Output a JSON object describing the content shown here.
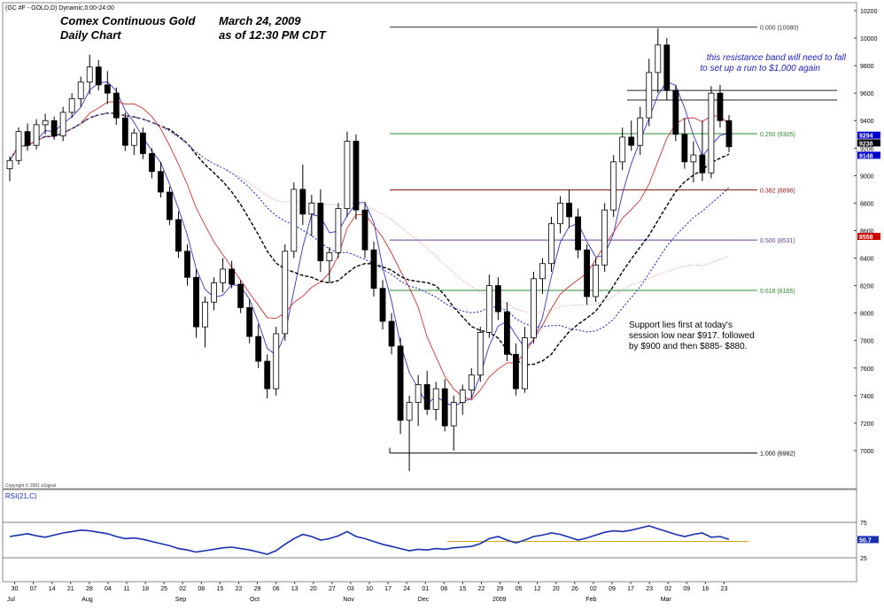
{
  "header": {
    "symbol": "(GC #F - GOLD,D) Dynamic,0:00-24:00",
    "title_line1": "Comex Continuous Gold",
    "title_line2": "Daily Chart",
    "date_line1": "March 24, 2009",
    "date_line2": "as of  12:30 PM CDT"
  },
  "copyright": "Copyright © 2001 eSignal",
  "colors": {
    "up_candle": "#ffffff",
    "down_candle": "#000000",
    "ma_fast": "#3333cc",
    "ma_red": "#cc3333",
    "ma_black": "#000000",
    "ma_blue_dotted": "#2233bb",
    "ma_pink_dotted": "#dd8888",
    "fib_green": "#2e8b2e",
    "fib_red": "#8b1a1a",
    "fib_purple": "#6a3d8f",
    "rsi_line": "#1a2fb0",
    "annotation_blue": "#2222bb"
  },
  "chart_data": [
    {
      "type": "candlestick",
      "title": "Comex Continuous Gold Daily Chart",
      "ylim": [
        680,
        1020
      ],
      "y_ticks": [
        700,
        720,
        740,
        760,
        780,
        800,
        820,
        840,
        860,
        880,
        900,
        920,
        940,
        960,
        980,
        1000,
        1020
      ],
      "y_tick_labels": [
        "7000",
        "7200",
        "7400",
        "7600",
        "7800",
        "8000",
        "8200",
        "8400",
        "8600",
        "8800",
        "9000",
        "9200",
        "9400",
        "9600",
        "9800",
        "10000",
        "10200"
      ],
      "price_tags": [
        {
          "label": "9294",
          "value": 929.4,
          "color": "#0000cc"
        },
        {
          "label": "9238",
          "value": 923.8,
          "color": "#000000"
        },
        {
          "label": "9148",
          "value": 914.8,
          "color": "#0000cc"
        },
        {
          "label": "8558",
          "value": 855.8,
          "color": "#cc0000"
        }
      ],
      "x_day_labels": [
        "30",
        "07",
        "14",
        "21",
        "28",
        "04",
        "11",
        "18",
        "25",
        "02",
        "08",
        "15",
        "22",
        "29",
        "06",
        "13",
        "20",
        "27",
        "03",
        "10",
        "17",
        "24",
        "01",
        "08",
        "15",
        "22",
        "29",
        "05",
        "12",
        "20",
        "26",
        "02",
        "09",
        "17",
        "23",
        "02",
        "09",
        "16",
        "23"
      ],
      "x_month_labels": [
        "Jul",
        "Aug",
        "Sep",
        "Oct",
        "Nov",
        "Dec",
        "2009",
        "Feb",
        "Mar"
      ],
      "candles": [
        {
          "o": 905,
          "h": 914,
          "l": 896,
          "c": 911
        },
        {
          "o": 911,
          "h": 935,
          "l": 908,
          "c": 932
        },
        {
          "o": 932,
          "h": 938,
          "l": 918,
          "c": 922
        },
        {
          "o": 922,
          "h": 941,
          "l": 919,
          "c": 937
        },
        {
          "o": 937,
          "h": 945,
          "l": 930,
          "c": 940
        },
        {
          "o": 940,
          "h": 943,
          "l": 926,
          "c": 929
        },
        {
          "o": 929,
          "h": 950,
          "l": 925,
          "c": 946
        },
        {
          "o": 946,
          "h": 960,
          "l": 942,
          "c": 956
        },
        {
          "o": 956,
          "h": 972,
          "l": 950,
          "c": 968
        },
        {
          "o": 968,
          "h": 988,
          "l": 959,
          "c": 979
        },
        {
          "o": 979,
          "h": 984,
          "l": 962,
          "c": 966
        },
        {
          "o": 966,
          "h": 976,
          "l": 952,
          "c": 960
        },
        {
          "o": 960,
          "h": 964,
          "l": 937,
          "c": 942
        },
        {
          "o": 942,
          "h": 946,
          "l": 918,
          "c": 922
        },
        {
          "o": 922,
          "h": 934,
          "l": 915,
          "c": 931
        },
        {
          "o": 931,
          "h": 935,
          "l": 912,
          "c": 916
        },
        {
          "o": 916,
          "h": 920,
          "l": 898,
          "c": 903
        },
        {
          "o": 903,
          "h": 910,
          "l": 884,
          "c": 888
        },
        {
          "o": 888,
          "h": 892,
          "l": 864,
          "c": 868
        },
        {
          "o": 868,
          "h": 874,
          "l": 840,
          "c": 845
        },
        {
          "o": 845,
          "h": 850,
          "l": 820,
          "c": 826
        },
        {
          "o": 826,
          "h": 832,
          "l": 782,
          "c": 790
        },
        {
          "o": 790,
          "h": 812,
          "l": 775,
          "c": 808
        },
        {
          "o": 808,
          "h": 826,
          "l": 802,
          "c": 822
        },
        {
          "o": 822,
          "h": 840,
          "l": 815,
          "c": 832
        },
        {
          "o": 832,
          "h": 838,
          "l": 818,
          "c": 821
        },
        {
          "o": 821,
          "h": 824,
          "l": 800,
          "c": 804
        },
        {
          "o": 804,
          "h": 810,
          "l": 778,
          "c": 783
        },
        {
          "o": 783,
          "h": 792,
          "l": 760,
          "c": 765
        },
        {
          "o": 765,
          "h": 770,
          "l": 738,
          "c": 745
        },
        {
          "o": 745,
          "h": 790,
          "l": 740,
          "c": 785
        },
        {
          "o": 785,
          "h": 850,
          "l": 780,
          "c": 845
        },
        {
          "o": 845,
          "h": 895,
          "l": 840,
          "c": 890
        },
        {
          "o": 890,
          "h": 908,
          "l": 864,
          "c": 872
        },
        {
          "o": 872,
          "h": 886,
          "l": 856,
          "c": 880
        },
        {
          "o": 880,
          "h": 890,
          "l": 830,
          "c": 838
        },
        {
          "o": 838,
          "h": 848,
          "l": 822,
          "c": 844
        },
        {
          "o": 844,
          "h": 880,
          "l": 840,
          "c": 876
        },
        {
          "o": 876,
          "h": 932,
          "l": 870,
          "c": 925
        },
        {
          "o": 925,
          "h": 930,
          "l": 868,
          "c": 875
        },
        {
          "o": 875,
          "h": 880,
          "l": 840,
          "c": 846
        },
        {
          "o": 846,
          "h": 852,
          "l": 812,
          "c": 818
        },
        {
          "o": 818,
          "h": 824,
          "l": 788,
          "c": 794
        },
        {
          "o": 794,
          "h": 800,
          "l": 770,
          "c": 776
        },
        {
          "o": 776,
          "h": 782,
          "l": 712,
          "c": 722
        },
        {
          "o": 722,
          "h": 740,
          "l": 685,
          "c": 735
        },
        {
          "o": 735,
          "h": 755,
          "l": 718,
          "c": 748
        },
        {
          "o": 748,
          "h": 758,
          "l": 726,
          "c": 730
        },
        {
          "o": 730,
          "h": 750,
          "l": 722,
          "c": 745
        },
        {
          "o": 745,
          "h": 752,
          "l": 714,
          "c": 718
        },
        {
          "o": 718,
          "h": 740,
          "l": 700,
          "c": 735
        },
        {
          "o": 735,
          "h": 748,
          "l": 726,
          "c": 744
        },
        {
          "o": 744,
          "h": 760,
          "l": 738,
          "c": 755
        },
        {
          "o": 755,
          "h": 790,
          "l": 750,
          "c": 786
        },
        {
          "o": 786,
          "h": 828,
          "l": 782,
          "c": 820
        },
        {
          "o": 820,
          "h": 826,
          "l": 795,
          "c": 801
        },
        {
          "o": 801,
          "h": 808,
          "l": 765,
          "c": 770
        },
        {
          "o": 770,
          "h": 778,
          "l": 740,
          "c": 745
        },
        {
          "o": 745,
          "h": 790,
          "l": 742,
          "c": 782
        },
        {
          "o": 782,
          "h": 830,
          "l": 778,
          "c": 825
        },
        {
          "o": 825,
          "h": 840,
          "l": 814,
          "c": 836
        },
        {
          "o": 836,
          "h": 870,
          "l": 830,
          "c": 865
        },
        {
          "o": 865,
          "h": 885,
          "l": 858,
          "c": 880
        },
        {
          "o": 880,
          "h": 890,
          "l": 862,
          "c": 870
        },
        {
          "o": 870,
          "h": 876,
          "l": 840,
          "c": 846
        },
        {
          "o": 846,
          "h": 850,
          "l": 806,
          "c": 812
        },
        {
          "o": 812,
          "h": 840,
          "l": 808,
          "c": 835
        },
        {
          "o": 835,
          "h": 880,
          "l": 830,
          "c": 875
        },
        {
          "o": 875,
          "h": 915,
          "l": 870,
          "c": 910
        },
        {
          "o": 910,
          "h": 935,
          "l": 904,
          "c": 928
        },
        {
          "o": 928,
          "h": 940,
          "l": 918,
          "c": 922
        },
        {
          "o": 922,
          "h": 950,
          "l": 915,
          "c": 942
        },
        {
          "o": 942,
          "h": 985,
          "l": 936,
          "c": 975
        },
        {
          "o": 975,
          "h": 1007,
          "l": 960,
          "c": 995
        },
        {
          "o": 995,
          "h": 1000,
          "l": 955,
          "c": 962
        },
        {
          "o": 962,
          "h": 966,
          "l": 925,
          "c": 930
        },
        {
          "o": 930,
          "h": 942,
          "l": 905,
          "c": 910
        },
        {
          "o": 910,
          "h": 925,
          "l": 895,
          "c": 915
        },
        {
          "o": 915,
          "h": 940,
          "l": 896,
          "c": 902
        },
        {
          "o": 902,
          "h": 965,
          "l": 898,
          "c": 960
        },
        {
          "o": 960,
          "h": 966,
          "l": 935,
          "c": 940
        },
        {
          "o": 940,
          "h": 944,
          "l": 917,
          "c": 921
        }
      ],
      "fibonacci": [
        {
          "label": "0.000 (10080)",
          "value": 1008.0
        },
        {
          "label": "0.250 (9305)",
          "value": 930.5
        },
        {
          "label": "0.382 (8896)",
          "value": 889.6
        },
        {
          "label": "0.500 (8531)",
          "value": 853.1
        },
        {
          "label": "0.618 (8165)",
          "value": 816.5
        },
        {
          "label": "1.000 (6982)",
          "value": 698.2
        }
      ],
      "resistance_band": [
        955,
        962
      ],
      "annotations": [
        "this resistance band will need to fall",
        "to set up a run to $1,000 again",
        "Support lies first at today's",
        "session low near $917. followed",
        "by $900 and then $885- $880."
      ]
    },
    {
      "type": "line",
      "title": "RSI(21,C)",
      "ylim": [
        0,
        100
      ],
      "y_ticks": [
        25,
        50,
        75
      ],
      "y_tick_labels": [
        "25",
        "50",
        "75"
      ],
      "reference_level": 50,
      "last_value_label": "50.7",
      "values": [
        55,
        57,
        59,
        56,
        54,
        57,
        60,
        62,
        64,
        63,
        61,
        59,
        55,
        52,
        53,
        51,
        48,
        45,
        42,
        38,
        36,
        33,
        35,
        37,
        39,
        40,
        38,
        36,
        33,
        30,
        35,
        44,
        52,
        58,
        55,
        50,
        52,
        56,
        62,
        55,
        52,
        48,
        44,
        41,
        38,
        35,
        37,
        36,
        38,
        37,
        39,
        40,
        41,
        45,
        52,
        55,
        50,
        46,
        50,
        55,
        57,
        60,
        58,
        54,
        50,
        53,
        57,
        61,
        63,
        62,
        64,
        67,
        70,
        66,
        62,
        58,
        55,
        58,
        60,
        54,
        55,
        51
      ]
    }
  ]
}
